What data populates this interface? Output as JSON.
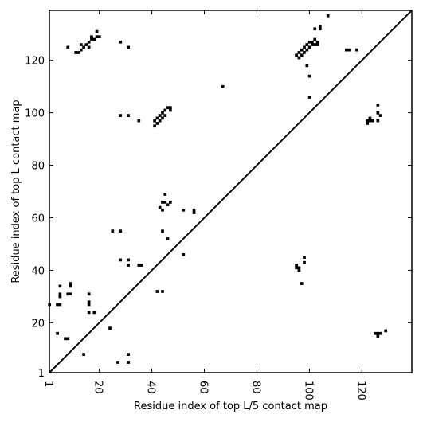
{
  "chart_data": {
    "type": "scatter",
    "title": "",
    "xlabel": "Residue index of top L/5 contact map",
    "ylabel": "Residue index of top L contact map",
    "xlim": [
      1,
      139
    ],
    "ylim": [
      1,
      139
    ],
    "xticks": [
      1,
      20,
      40,
      60,
      80,
      100,
      120
    ],
    "yticks": [
      1,
      20,
      40,
      60,
      80,
      100,
      120
    ],
    "x_tick_labels": [
      "1",
      "20",
      "40",
      "60",
      "80",
      "100",
      "120"
    ],
    "y_tick_labels": [
      "1",
      "20",
      "40",
      "60",
      "80",
      "100",
      "120"
    ],
    "x_tick_rotation": "vertical",
    "grid": false,
    "diagonal": true,
    "colors": {
      "marker": "#000000",
      "diagonal": "#000000",
      "axes": "#000000"
    },
    "series": [
      {
        "region": "upper-left (top L contact map)",
        "points": [
          [
            8,
            125
          ],
          [
            11,
            123
          ],
          [
            12,
            123
          ],
          [
            13,
            124
          ],
          [
            13,
            126
          ],
          [
            14,
            125
          ],
          [
            15,
            126
          ],
          [
            16,
            127
          ],
          [
            16,
            125
          ],
          [
            17,
            128
          ],
          [
            18,
            128
          ],
          [
            17,
            129
          ],
          [
            19,
            131
          ],
          [
            19,
            129
          ],
          [
            20,
            129
          ],
          [
            28,
            127
          ],
          [
            31,
            125
          ],
          [
            28,
            99
          ],
          [
            31,
            99
          ],
          [
            35,
            97
          ],
          [
            41,
            97
          ],
          [
            41,
            95
          ],
          [
            42,
            96
          ],
          [
            42,
            98
          ],
          [
            43,
            99
          ],
          [
            43,
            97
          ],
          [
            44,
            98
          ],
          [
            44,
            100
          ],
          [
            45,
            101
          ],
          [
            45,
            99
          ],
          [
            46,
            102
          ],
          [
            47,
            102
          ],
          [
            47,
            101
          ],
          [
            67,
            110
          ],
          [
            95,
            122
          ],
          [
            96,
            121
          ],
          [
            96,
            123
          ],
          [
            97,
            124
          ],
          [
            97,
            122
          ],
          [
            98,
            125
          ],
          [
            98,
            123
          ],
          [
            99,
            126
          ],
          [
            99,
            124
          ],
          [
            100,
            127
          ],
          [
            100,
            125
          ],
          [
            101,
            127
          ],
          [
            101,
            126
          ],
          [
            102,
            128
          ],
          [
            102,
            126
          ],
          [
            103,
            127
          ],
          [
            103,
            126
          ],
          [
            102,
            132
          ],
          [
            104,
            132
          ],
          [
            104,
            133
          ],
          [
            107,
            137
          ],
          [
            114,
            124
          ],
          [
            115,
            124
          ],
          [
            118,
            124
          ],
          [
            99,
            118
          ],
          [
            100,
            114
          ],
          [
            100,
            106
          ],
          [
            45,
            69
          ],
          [
            44,
            66
          ],
          [
            45,
            66
          ],
          [
            43,
            64
          ],
          [
            44,
            63
          ],
          [
            46,
            65
          ],
          [
            47,
            66
          ],
          [
            52,
            63
          ],
          [
            56,
            63
          ],
          [
            56,
            62
          ],
          [
            44,
            55
          ],
          [
            46,
            52
          ],
          [
            25,
            55
          ],
          [
            28,
            55
          ],
          [
            52,
            46
          ],
          [
            28,
            44
          ],
          [
            31,
            44
          ],
          [
            31,
            42
          ],
          [
            35,
            42
          ],
          [
            36,
            42
          ],
          [
            42,
            32
          ],
          [
            44,
            32
          ],
          [
            1,
            27
          ],
          [
            4,
            27
          ],
          [
            5,
            27
          ],
          [
            5,
            31
          ],
          [
            5,
            30
          ],
          [
            5,
            34
          ],
          [
            9,
            35
          ],
          [
            9,
            34
          ],
          [
            8,
            31
          ],
          [
            9,
            31
          ],
          [
            16,
            31
          ],
          [
            16,
            28
          ],
          [
            16,
            27
          ],
          [
            16,
            24
          ],
          [
            18,
            24
          ]
        ]
      },
      {
        "region": "lower-right (top L/5 contact map)",
        "points": [
          [
            4,
            16
          ],
          [
            7,
            14
          ],
          [
            8,
            14
          ],
          [
            14,
            8
          ],
          [
            24,
            18
          ],
          [
            27,
            5
          ],
          [
            31,
            8
          ],
          [
            31,
            5
          ],
          [
            122,
            96
          ],
          [
            122,
            97
          ],
          [
            123,
            98
          ],
          [
            123,
            97
          ],
          [
            124,
            97
          ],
          [
            126,
            97
          ],
          [
            126,
            100
          ],
          [
            126,
            103
          ],
          [
            127,
            99
          ],
          [
            95,
            42
          ],
          [
            95,
            41
          ],
          [
            96,
            41
          ],
          [
            96,
            40
          ],
          [
            98,
            45
          ],
          [
            98,
            43
          ],
          [
            97,
            35
          ],
          [
            125,
            16
          ],
          [
            126,
            15
          ],
          [
            126,
            16
          ],
          [
            127,
            16
          ],
          [
            129,
            17
          ]
        ]
      }
    ]
  }
}
